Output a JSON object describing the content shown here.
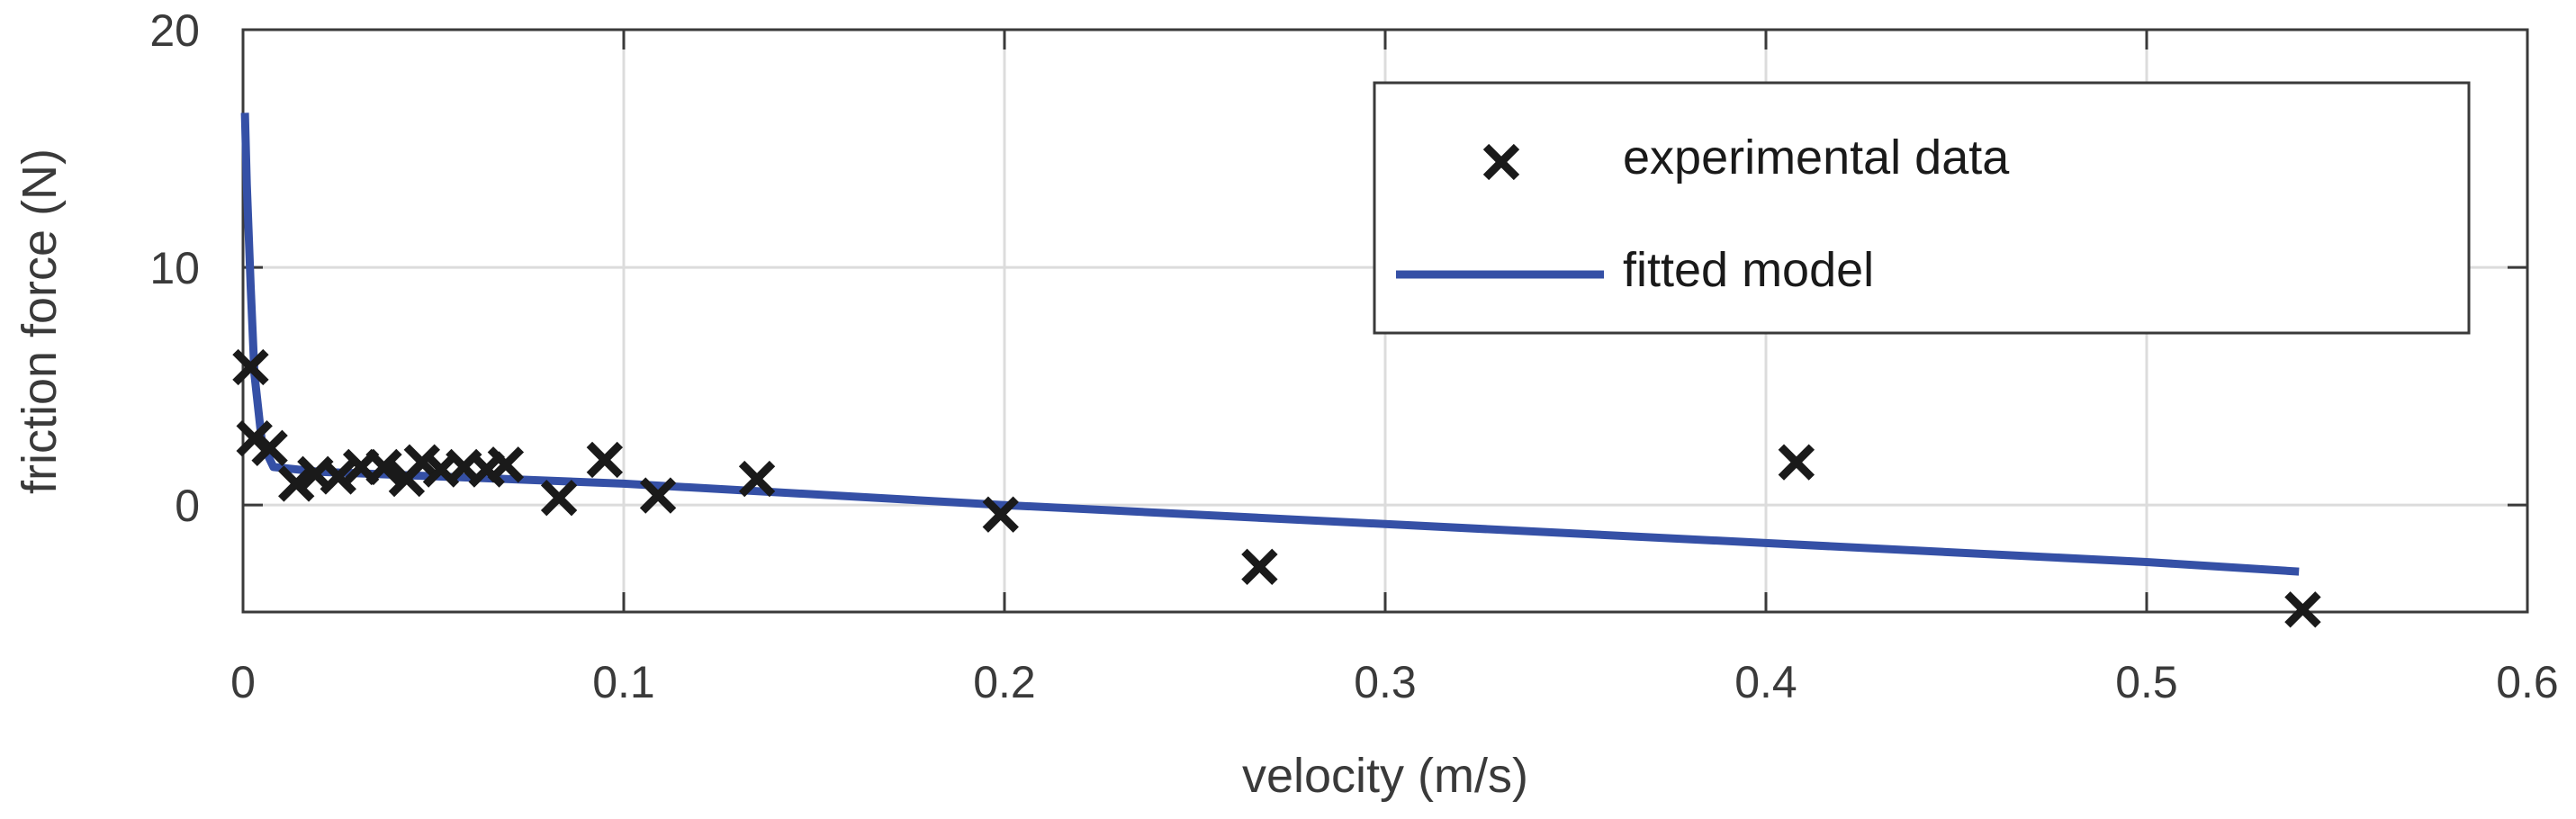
{
  "chart_data": {
    "type": "scatter",
    "title": "",
    "xlabel": "velocity (m/s)",
    "ylabel": "friction force (N)",
    "xlim": [
      0,
      0.6
    ],
    "ylim": [
      -4.5,
      20
    ],
    "xticks": [
      0,
      0.1,
      0.2,
      0.3,
      0.4,
      0.5,
      0.6
    ],
    "xtick_labels": [
      "0",
      "0.1",
      "0.2",
      "0.3",
      "0.4",
      "0.5",
      "0.6"
    ],
    "yticks": [
      0,
      10,
      20
    ],
    "ytick_labels": [
      "0",
      "10",
      "20"
    ],
    "grid": true,
    "legend_position": "top-right",
    "series": [
      {
        "name": "experimental data",
        "kind": "scatter",
        "marker": "x",
        "color": "#1a1a1a",
        "x": [
          0.002,
          0.003,
          0.007,
          0.014,
          0.019,
          0.025,
          0.031,
          0.037,
          0.043,
          0.047,
          0.052,
          0.058,
          0.064,
          0.069,
          0.083,
          0.095,
          0.109,
          0.135,
          0.199,
          0.267,
          0.408,
          0.541
        ],
        "y": [
          5.8,
          2.8,
          2.4,
          0.9,
          1.3,
          1.2,
          1.6,
          1.6,
          1.1,
          1.8,
          1.5,
          1.6,
          1.5,
          1.7,
          0.3,
          1.9,
          0.4,
          1.1,
          -0.4,
          -2.6,
          1.8,
          -4.4
        ]
      },
      {
        "name": "fitted model",
        "kind": "line",
        "color": "#3550a6",
        "x": [
          0.0005,
          0.001,
          0.002,
          0.003,
          0.005,
          0.008,
          0.02,
          0.1,
          0.2,
          0.3,
          0.4,
          0.5,
          0.54
        ],
        "y": [
          16.5,
          13.5,
          9.2,
          5.5,
          2.6,
          1.6,
          1.4,
          0.9,
          0.0,
          -0.8,
          -1.6,
          -2.4,
          -2.8
        ]
      }
    ]
  }
}
